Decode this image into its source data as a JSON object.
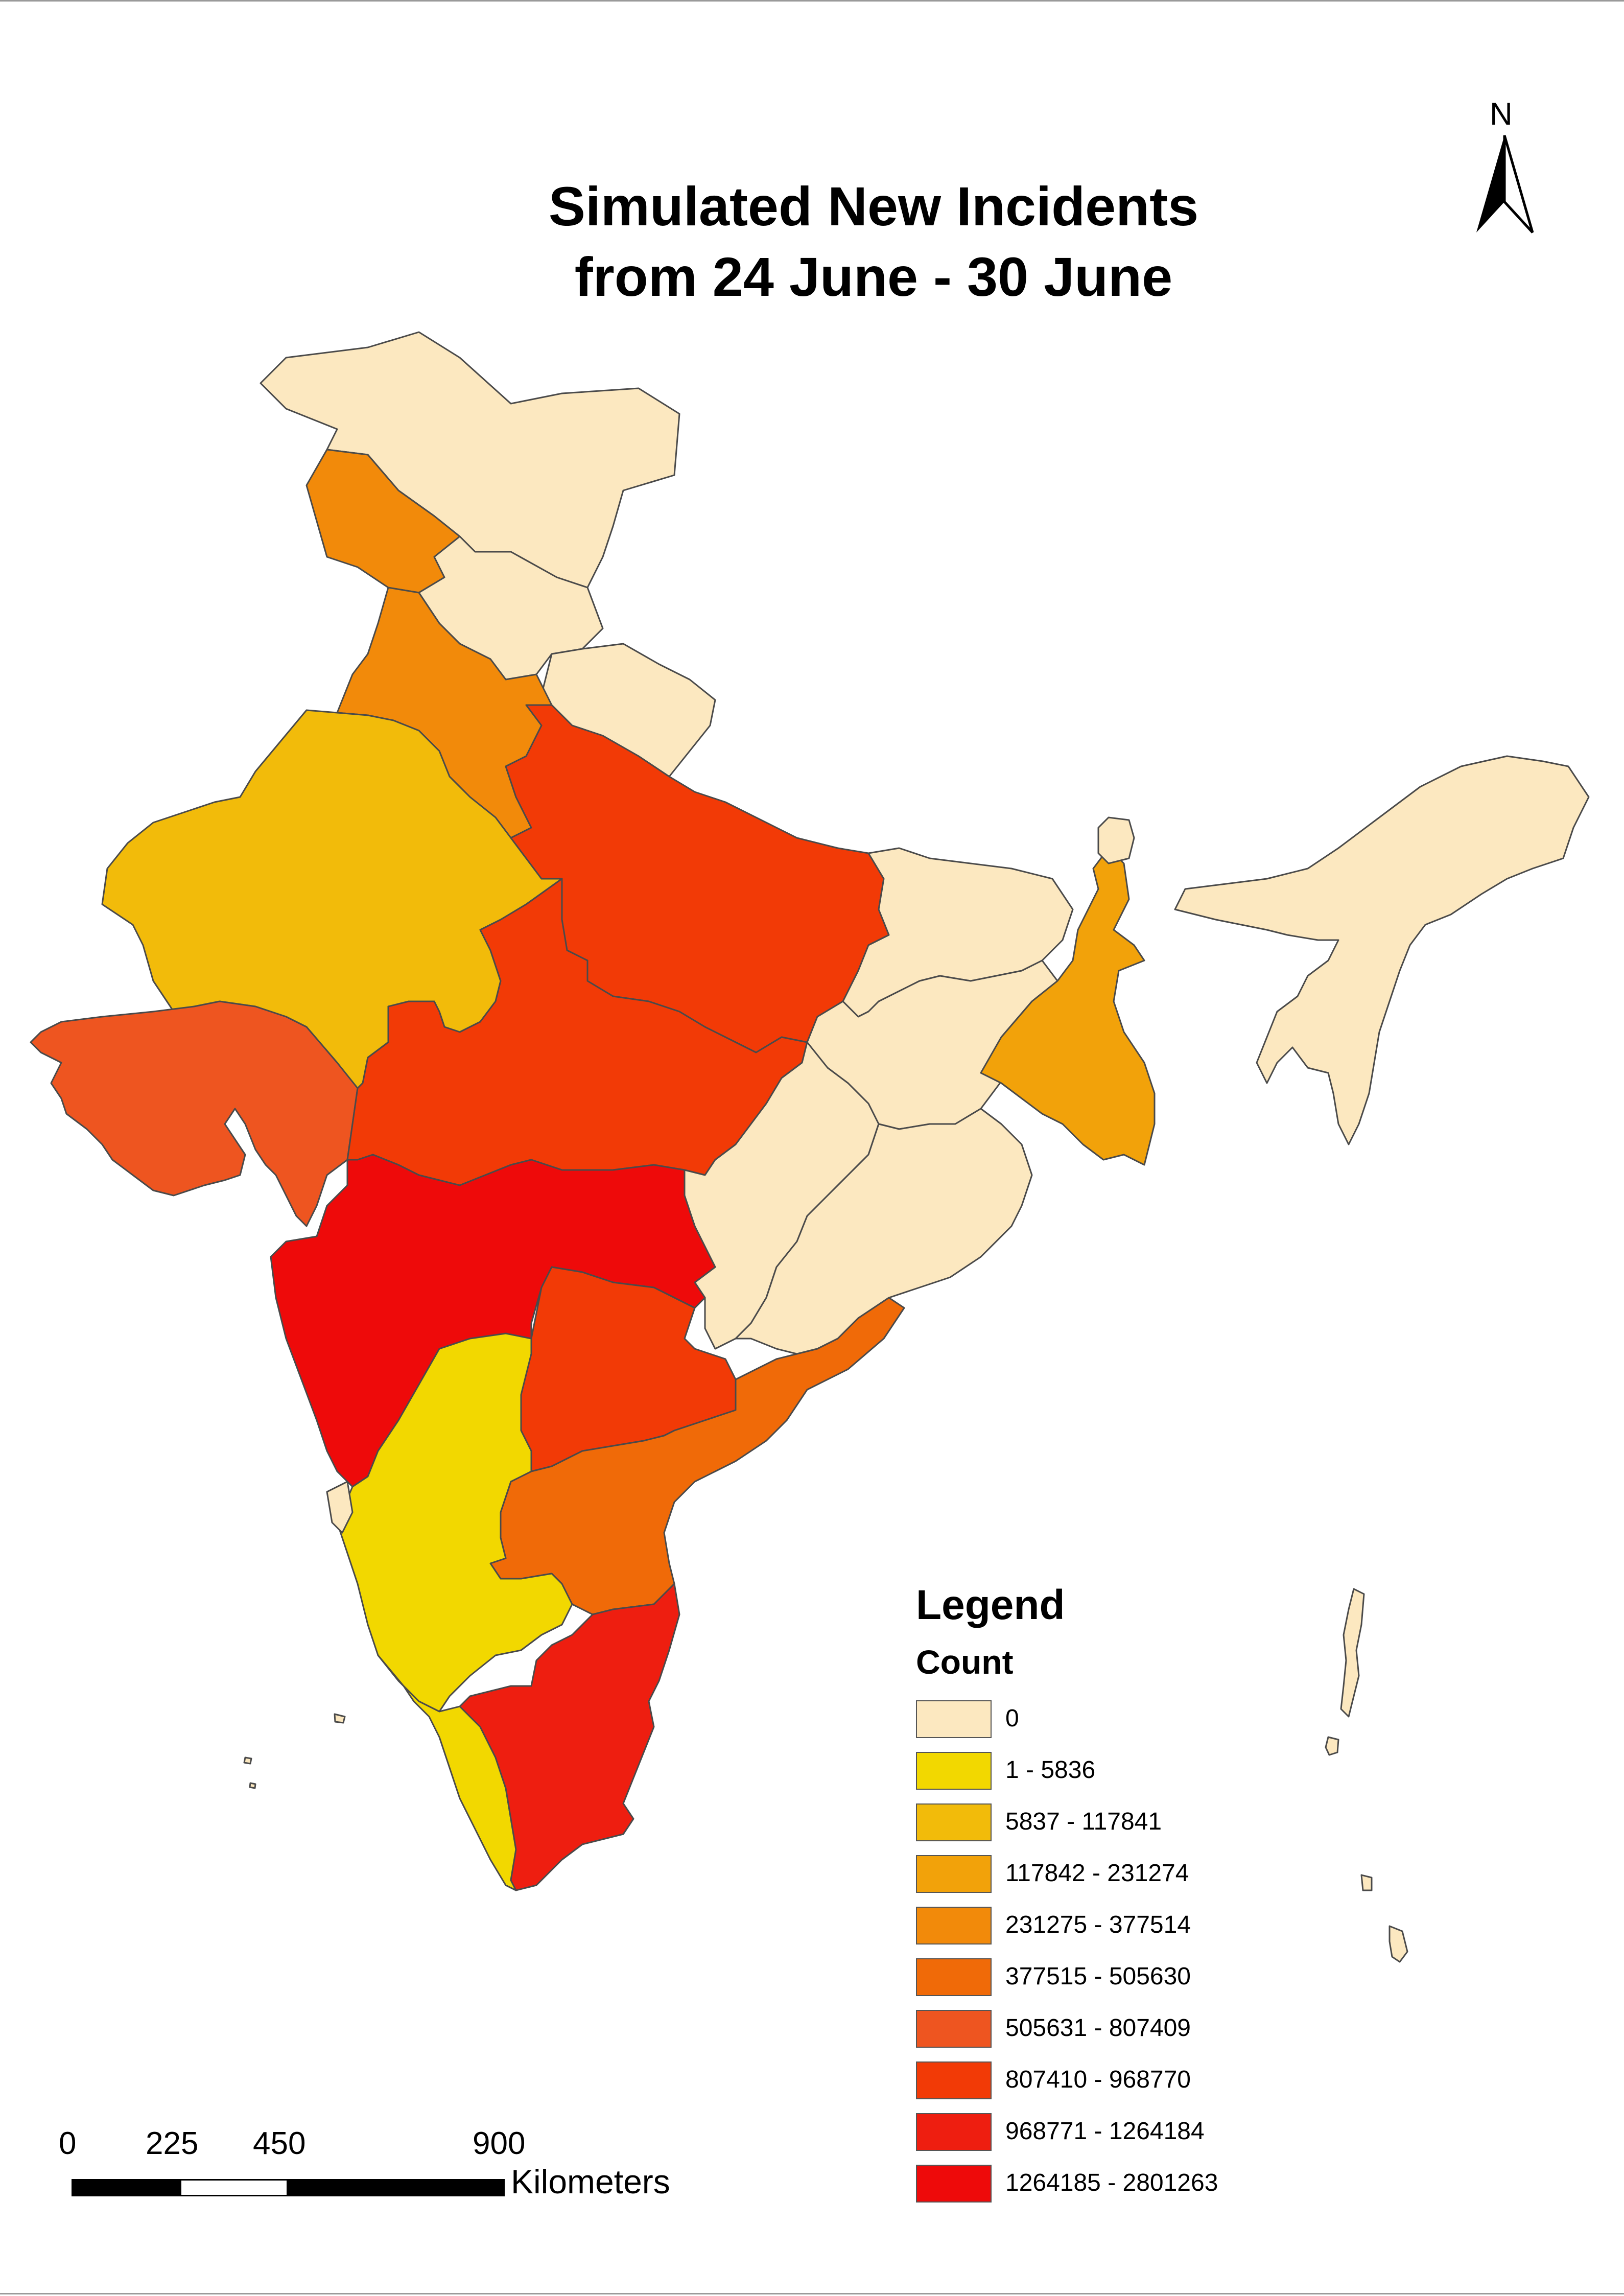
{
  "title": {
    "line1": "Simulated New Incidents",
    "line2": "from 24 June - 30 June"
  },
  "north_arrow": {
    "label": "N"
  },
  "legend": {
    "title": "Legend",
    "field": "Count",
    "classes": [
      {
        "label": "0",
        "color": "#FCE8C0"
      },
      {
        "label": "1 - 5836",
        "color": "#F2D800"
      },
      {
        "label": "5837 - 117841",
        "color": "#F2BB0A"
      },
      {
        "label": "117842 - 231274",
        "color": "#F2A20A"
      },
      {
        "label": "231275 - 377514",
        "color": "#F28A0A"
      },
      {
        "label": "377515 - 505630",
        "color": "#F06A08"
      },
      {
        "label": "505631 - 807409",
        "color": "#EE5520"
      },
      {
        "label": "807410 - 968770",
        "color": "#F23A06"
      },
      {
        "label": "968771 - 1264184",
        "color": "#EE1E10"
      },
      {
        "label": "1264185 - 2801263",
        "color": "#EE0A0A"
      }
    ]
  },
  "scale_bar": {
    "ticks": [
      "0",
      "225",
      "450",
      "900"
    ],
    "units": "Kilometers"
  },
  "colors": {
    "zero": "#FCE8C0",
    "boundary": "#4a4a4a"
  }
}
